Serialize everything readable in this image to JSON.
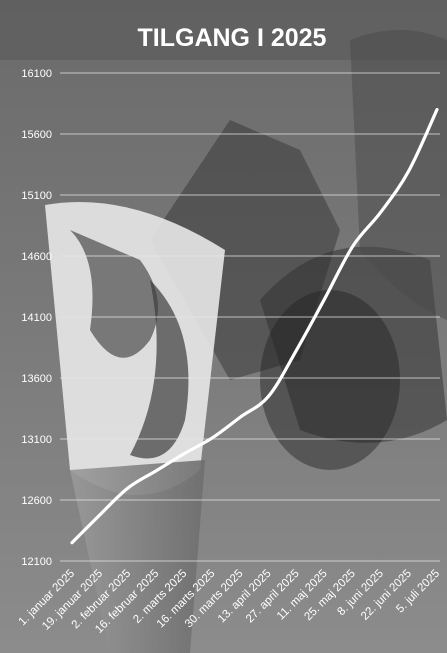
{
  "chart_data": {
    "type": "line",
    "title": "TILGANG I 2025",
    "xlabel": "",
    "ylabel": "",
    "categories": [
      "1. januar 2025",
      "19. januar 2025",
      "2. februar 2025",
      "16. februar 2025",
      "2. marts 2025",
      "16. marts 2025",
      "30. marts 2025",
      "13. april 2025",
      "27. april 2025",
      "11. maj 2025",
      "25. maj 2025",
      "8. juni 2025",
      "22. juni 2025",
      "5. juli 2025"
    ],
    "yticks": [
      "12100",
      "12600",
      "13100",
      "13600",
      "14100",
      "14600",
      "15100",
      "15600",
      "16100"
    ],
    "ylim": [
      12100,
      16100
    ],
    "grid": true,
    "legend": "none",
    "series": [
      {
        "values": [
          12250,
          12480,
          12700,
          12840,
          12980,
          13110,
          13280,
          13450,
          13830,
          14250,
          14680,
          14960,
          15300,
          15800
        ],
        "color": "#ffffff"
      }
    ],
    "colors": {
      "line": "#ffffff",
      "grid": "#e6e6e6",
      "text": "#ffffff"
    }
  }
}
